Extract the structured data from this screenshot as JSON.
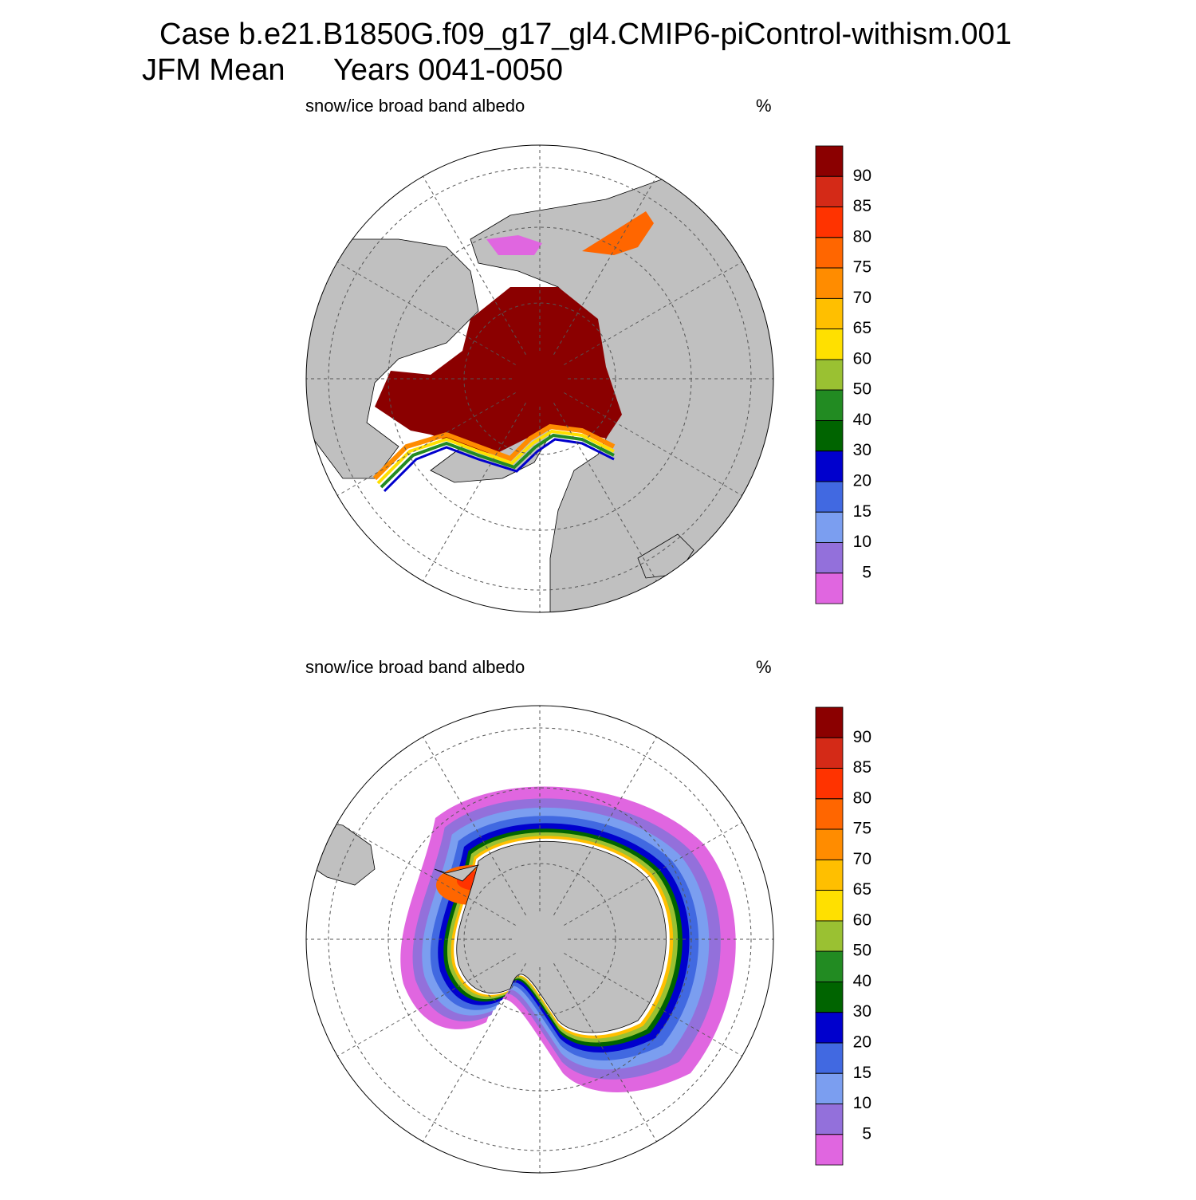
{
  "title": {
    "line1": "Case b.e21.B1850G.f09_g17_gl4.CMIP6-piControl-withism.001",
    "line2a": "JFM Mean",
    "line2b": "Years 0041-0050"
  },
  "panels": [
    {
      "subtitle": "snow/ice broad band albedo",
      "units": "%"
    },
    {
      "subtitle": "snow/ice broad band albedo",
      "units": "%"
    }
  ],
  "colorbar": {
    "levels": [
      90,
      85,
      80,
      75,
      70,
      65,
      60,
      50,
      40,
      30,
      20,
      15,
      10,
      5
    ],
    "colors": [
      "#8b0000",
      "#d42a17",
      "#ff3300",
      "#ff6600",
      "#ff8c00",
      "#ffbf00",
      "#ffe000",
      "#9ac132",
      "#228b22",
      "#006400",
      "#0000cd",
      "#4169e1",
      "#7b9ef0",
      "#9370db",
      "#e066e0"
    ]
  }
}
